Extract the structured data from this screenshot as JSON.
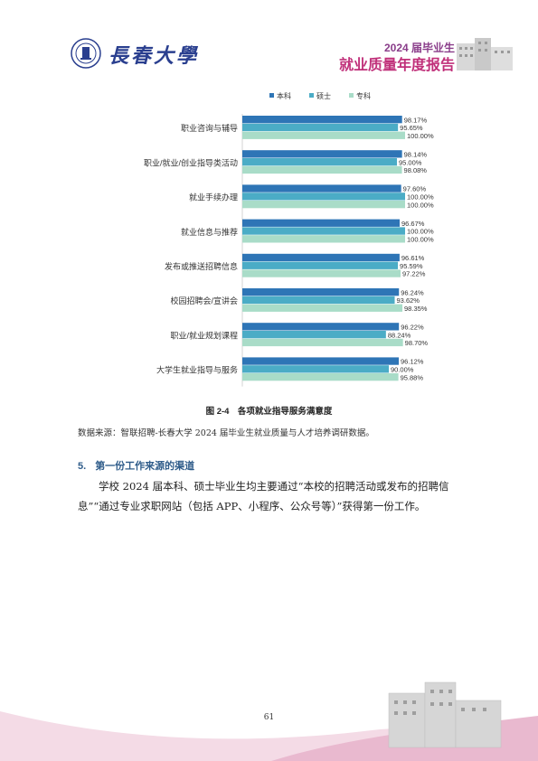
{
  "header": {
    "university_name": "長春大學",
    "report_year": "2024 届毕业生",
    "report_title": "就业质量年度报告"
  },
  "chart_data": {
    "type": "bar",
    "orientation": "horizontal",
    "categories": [
      "职业咨询与辅导",
      "职业/就业/创业指导类活动",
      "就业手续办理",
      "就业信息与推荐",
      "发布或推送招聘信息",
      "校园招聘会/宣讲会",
      "职业/就业规划课程",
      "大学生就业指导与服务"
    ],
    "series": [
      {
        "name": "本科",
        "color": "#2e75b6",
        "values": [
          98.17,
          98.14,
          97.6,
          96.67,
          96.61,
          96.24,
          96.22,
          96.12
        ]
      },
      {
        "name": "硕士",
        "color": "#4bacc6",
        "values": [
          95.65,
          95.0,
          100.0,
          100.0,
          95.59,
          93.62,
          88.24,
          90.0
        ]
      },
      {
        "name": "专科",
        "color": "#a9dcc8",
        "values": [
          100.0,
          98.08,
          100.0,
          100.0,
          97.22,
          98.35,
          98.7,
          95.88
        ]
      }
    ],
    "value_format": "%",
    "legend": "top",
    "grid": false
  },
  "caption": "图 2-4　各项就业指导服务满意度",
  "source": "数据来源：智联招聘-长春大学 2024 届毕业生就业质量与人才培养调研数据。",
  "section": {
    "number": "5.",
    "title": "第一份工作来源的渠道",
    "paragraph": "学校 2024 届本科、硕士毕业生均主要通过“本校的招聘活动或发布的招聘信息”“通过专业求职网站（包括 APP、小程序、公众号等）”获得第一份工作。"
  },
  "page_number": "61"
}
